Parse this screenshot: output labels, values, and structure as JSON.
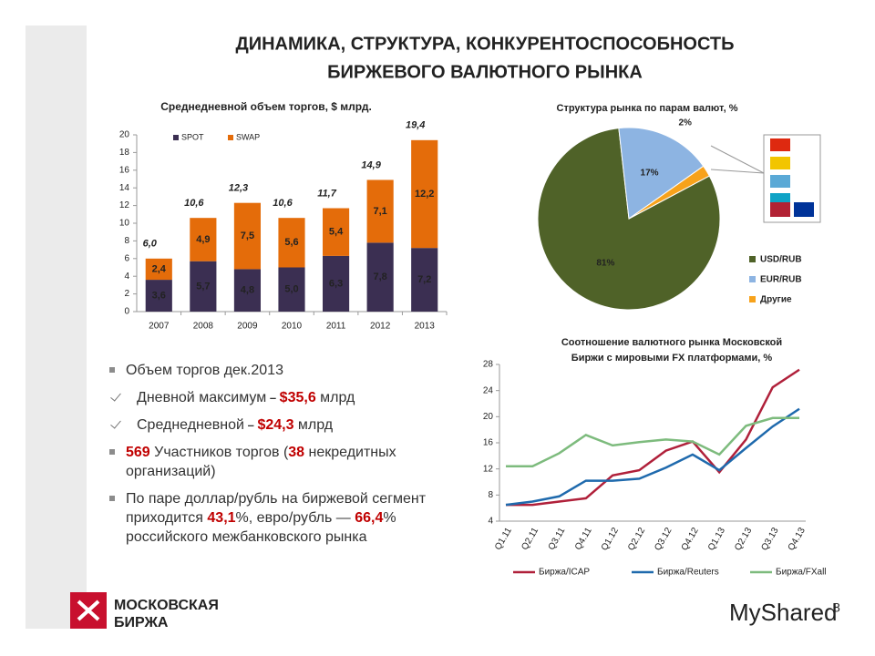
{
  "title": [
    "ДИНАМИКА, СТРУКТУРА, КОНКУРЕНТОСПОСОБНОСТЬ",
    "БИРЖЕВОГО ВАЛЮТНОГО РЫНКА"
  ],
  "chart_data": [
    {
      "type": "bar",
      "stacked": true,
      "title": "Среднедневной объем торгов, $ млрд.",
      "categories": [
        "2007",
        "2008",
        "2009",
        "2010",
        "2011",
        "2012",
        "2013"
      ],
      "series": [
        {
          "name": "SPOT",
          "color": "#3b2f52",
          "label_color": "#ffffff",
          "values": [
            3.6,
            5.7,
            4.8,
            5.0,
            6.3,
            7.8,
            7.2
          ],
          "value_labels": [
            "3,6",
            "5,7",
            "4,8",
            "5,0",
            "6,3",
            "7,8",
            "7,2"
          ]
        },
        {
          "name": "SWAP",
          "color": "#e46c0a",
          "label_color": "#222222",
          "values": [
            2.4,
            4.9,
            7.5,
            5.6,
            5.4,
            7.1,
            12.2
          ],
          "value_labels": [
            "2,4",
            "4,9",
            "7,5",
            "5,6",
            "5,4",
            "7,1",
            "12,2"
          ]
        }
      ],
      "totals": {
        "color": "#c00000",
        "values": [
          6.0,
          10.6,
          12.3,
          10.6,
          11.7,
          14.9,
          19.4
        ],
        "value_labels": [
          "6,0",
          "10,6",
          "12,3",
          "10,6",
          "11,7",
          "14,9",
          "19,4"
        ]
      },
      "ylim": [
        0,
        20
      ],
      "yticks": [
        0,
        2,
        4,
        6,
        8,
        10,
        12,
        14,
        16,
        18,
        20
      ],
      "legend": "top-left"
    },
    {
      "type": "pie",
      "title": "Структура рынка по парам валют, %",
      "categories": [
        "USD/RUB",
        "EUR/RUB",
        "Другие"
      ],
      "values": [
        81,
        17,
        2
      ],
      "value_labels": [
        "81%",
        "17%",
        "2%"
      ],
      "colors": [
        "#4f6228",
        "#8db4e2",
        "#f7a21b"
      ],
      "legend": "right"
    },
    {
      "type": "line",
      "title": [
        "Соотношение валютного рынка  Московской",
        "Биржи с мировыми FX платформами, %"
      ],
      "categories": [
        "Q1.11",
        "Q2.11",
        "Q3.11",
        "Q4.11",
        "Q1.12",
        "Q2.12",
        "Q3.12",
        "Q4.12",
        "Q1.13",
        "Q2.13",
        "Q3.13",
        "Q4.13"
      ],
      "series": [
        {
          "name": "Биржа/ICAP",
          "color": "#b0203a",
          "values": [
            6.5,
            6.5,
            7.0,
            7.5,
            11.0,
            11.8,
            14.8,
            16.2,
            11.5,
            16.5,
            24.5,
            27.2
          ]
        },
        {
          "name": "Биржа/Reuters",
          "color": "#1f6aad",
          "values": [
            6.5,
            7.0,
            7.8,
            10.2,
            10.2,
            10.5,
            12.2,
            14.2,
            11.8,
            15.2,
            18.5,
            21.2
          ]
        },
        {
          "name": "Биржа/FXall",
          "color": "#7dbb7d",
          "values": [
            12.4,
            12.4,
            14.4,
            17.2,
            15.6,
            16.1,
            16.5,
            16.2,
            14.2,
            18.6,
            19.8,
            19.8
          ]
        }
      ],
      "ylim": [
        4,
        28
      ],
      "yticks": [
        4,
        8,
        12,
        16,
        20,
        24,
        28
      ],
      "grid": false,
      "legend": "bottom"
    }
  ],
  "bullets": [
    {
      "marker": "square",
      "parts": [
        {
          "text": "Объем торгов дек.2013"
        }
      ]
    },
    {
      "marker": "check",
      "parts": [
        {
          "text": "Дневной максимум"
        },
        {
          "text": " – ",
          "em": "dash"
        },
        {
          "text": "$35,6",
          "em": "red"
        },
        {
          "text": " млрд"
        }
      ]
    },
    {
      "marker": "check",
      "parts": [
        {
          "text": "Среднедневной"
        },
        {
          "text": " – ",
          "em": "dash"
        },
        {
          "text": "$24,3",
          "em": "red"
        },
        {
          "text": " млрд"
        }
      ]
    },
    {
      "marker": "square",
      "parts": [
        {
          "text": "569",
          "em": "red"
        },
        {
          "text": " Участников торгов ("
        },
        {
          "text": "38",
          "em": "red"
        },
        {
          "text": " некредитных организаций)"
        }
      ]
    },
    {
      "marker": "square",
      "parts": [
        {
          "text": "По паре доллар/рубль на биржевой сегмент приходится "
        },
        {
          "text": "43,1",
          "em": "red"
        },
        {
          "text": "%, евро/рубль — "
        },
        {
          "text": "66,4",
          "em": "red"
        },
        {
          "text": "% российского межбанковского рынка"
        }
      ]
    }
  ],
  "logo": [
    "МОСКОВСКАЯ",
    "БИРЖА"
  ],
  "page_number": "8",
  "watermark": "MyShared"
}
